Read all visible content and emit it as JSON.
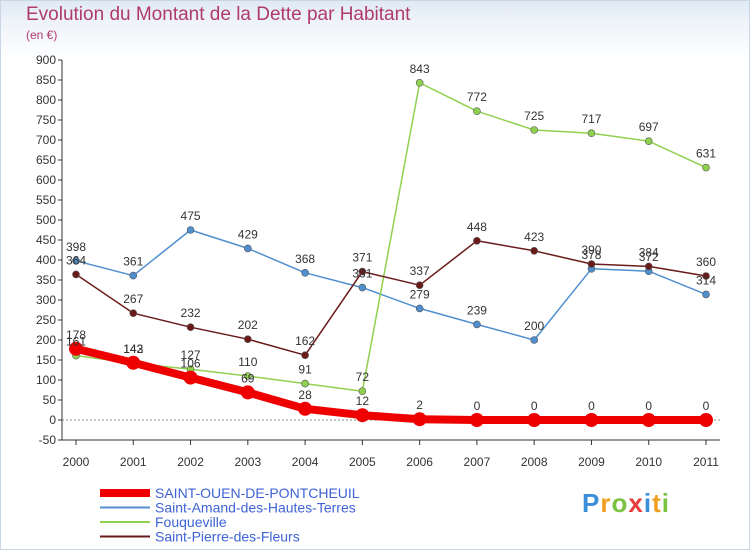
{
  "title": "Evolution du Montant de la Dette par Habitant",
  "unit_label": "(en €)",
  "logo": {
    "text": "Proxiti",
    "letters": [
      "P",
      "r",
      "o",
      "x",
      "i",
      "t",
      "i"
    ],
    "colors": [
      "#3a8fd8",
      "#f0a020",
      "#7cc242",
      "#e83b3b",
      "#3a8fd8",
      "#f0a020",
      "#7cc242"
    ]
  },
  "chart_data": {
    "type": "line",
    "title": "Evolution du Montant de la Dette par Habitant",
    "subtitle": "(en €)",
    "x": [
      "2000",
      "2001",
      "2002",
      "2003",
      "2004",
      "2005",
      "2006",
      "2007",
      "2008",
      "2009",
      "2010",
      "2011"
    ],
    "ylim": [
      -50,
      900
    ],
    "yticks": [
      -50,
      0,
      50,
      100,
      150,
      200,
      250,
      300,
      350,
      400,
      450,
      500,
      550,
      600,
      650,
      700,
      750,
      800,
      850,
      900
    ],
    "grid": false,
    "legend_position": "bottom-left",
    "series": [
      {
        "name": "SAINT-OUEN-DE-PONTCHEUIL",
        "color": "#ee0000",
        "values": [
          178,
          143,
          106,
          69,
          28,
          12,
          2,
          0,
          0,
          0,
          0,
          0
        ]
      },
      {
        "name": "Saint-Amand-des-Hautes-Terres",
        "color": "#4f8fcf",
        "values": [
          398,
          361,
          475,
          429,
          368,
          331,
          279,
          239,
          200,
          378,
          372,
          314
        ]
      },
      {
        "name": "Fouqueville",
        "color": "#8fd14f",
        "values": [
          161,
          142,
          127,
          110,
          91,
          72,
          843,
          772,
          725,
          717,
          697,
          631
        ]
      },
      {
        "name": "Saint-Pierre-des-Fleurs",
        "color": "#6b1a1a",
        "values": [
          364,
          267,
          232,
          202,
          162,
          371,
          337,
          448,
          423,
          390,
          384,
          360
        ]
      }
    ]
  }
}
